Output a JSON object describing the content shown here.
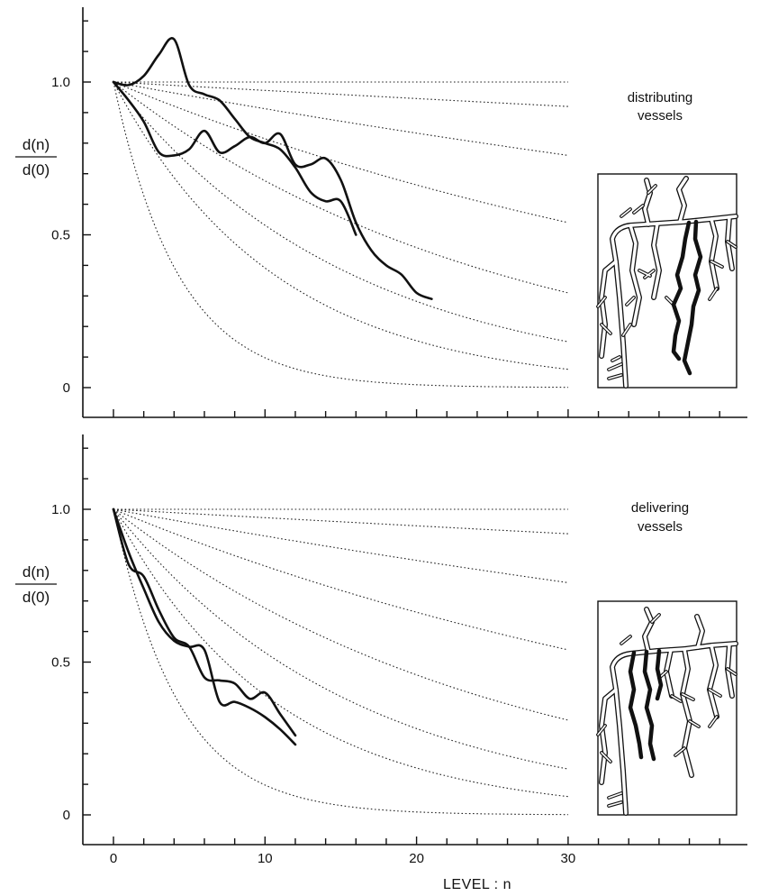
{
  "chart_data": [
    {
      "type": "line",
      "panel": "top",
      "annotation": [
        "distributing",
        "vessels"
      ],
      "ylabel": [
        "d(n)",
        "d(0)"
      ],
      "xlabel": "",
      "xlim": [
        0,
        30
      ],
      "ylim": [
        0,
        1.0
      ],
      "yticks": [
        "0",
        "0.5",
        "1.0"
      ],
      "reference_curves": [
        {
          "values_at_30": 1.0
        },
        {
          "values_at_30": 0.92
        },
        {
          "values_at_30": 0.76
        },
        {
          "values_at_30": 0.54
        },
        {
          "values_at_30": 0.31
        },
        {
          "values_at_30": 0.15
        },
        {
          "values_at_30": 0.06
        },
        {
          "values_at_30": 0.0
        }
      ],
      "series": [
        {
          "x": [
            0,
            1,
            2,
            3,
            4,
            5,
            6,
            7,
            8,
            9,
            10,
            11,
            12,
            13,
            14,
            15,
            16
          ],
          "y": [
            1.0,
            0.99,
            1.02,
            1.09,
            1.14,
            0.99,
            0.96,
            0.94,
            0.88,
            0.82,
            0.8,
            0.78,
            0.72,
            0.64,
            0.61,
            0.61,
            0.5
          ]
        },
        {
          "x": [
            0,
            1,
            2,
            3,
            4,
            5,
            6,
            7,
            8,
            9,
            10,
            11,
            12,
            13,
            14,
            15,
            16,
            17,
            18,
            19,
            20,
            21
          ],
          "y": [
            1.0,
            0.94,
            0.87,
            0.77,
            0.76,
            0.78,
            0.84,
            0.77,
            0.79,
            0.82,
            0.8,
            0.83,
            0.73,
            0.73,
            0.75,
            0.68,
            0.54,
            0.45,
            0.4,
            0.37,
            0.31,
            0.29
          ]
        }
      ]
    },
    {
      "type": "line",
      "panel": "bottom",
      "annotation": [
        "delivering",
        "vessels"
      ],
      "ylabel": [
        "d(n)",
        "d(0)"
      ],
      "xlabel": "LEVEL : n",
      "xlim": [
        0,
        30
      ],
      "ylim": [
        0,
        1.0
      ],
      "xticks": [
        "0",
        "10",
        "20",
        "30"
      ],
      "yticks": [
        "0",
        "0.5",
        "1.0"
      ],
      "reference_curves": [
        {
          "values_at_30": 1.0
        },
        {
          "values_at_30": 0.92
        },
        {
          "values_at_30": 0.76
        },
        {
          "values_at_30": 0.54
        },
        {
          "values_at_30": 0.31
        },
        {
          "values_at_30": 0.15
        },
        {
          "values_at_30": 0.06
        },
        {
          "values_at_30": 0.0
        }
      ],
      "series": [
        {
          "x": [
            0,
            1,
            2,
            3,
            4,
            5,
            6,
            7,
            8,
            9,
            10,
            11,
            12
          ],
          "y": [
            1.0,
            0.82,
            0.78,
            0.67,
            0.58,
            0.55,
            0.45,
            0.44,
            0.43,
            0.38,
            0.4,
            0.33,
            0.26
          ]
        },
        {
          "x": [
            0,
            1,
            2,
            3,
            4,
            5,
            6,
            7,
            8,
            9,
            10,
            11,
            12
          ],
          "y": [
            1.0,
            0.86,
            0.74,
            0.63,
            0.57,
            0.55,
            0.54,
            0.37,
            0.37,
            0.35,
            0.32,
            0.28,
            0.23
          ]
        }
      ]
    }
  ]
}
